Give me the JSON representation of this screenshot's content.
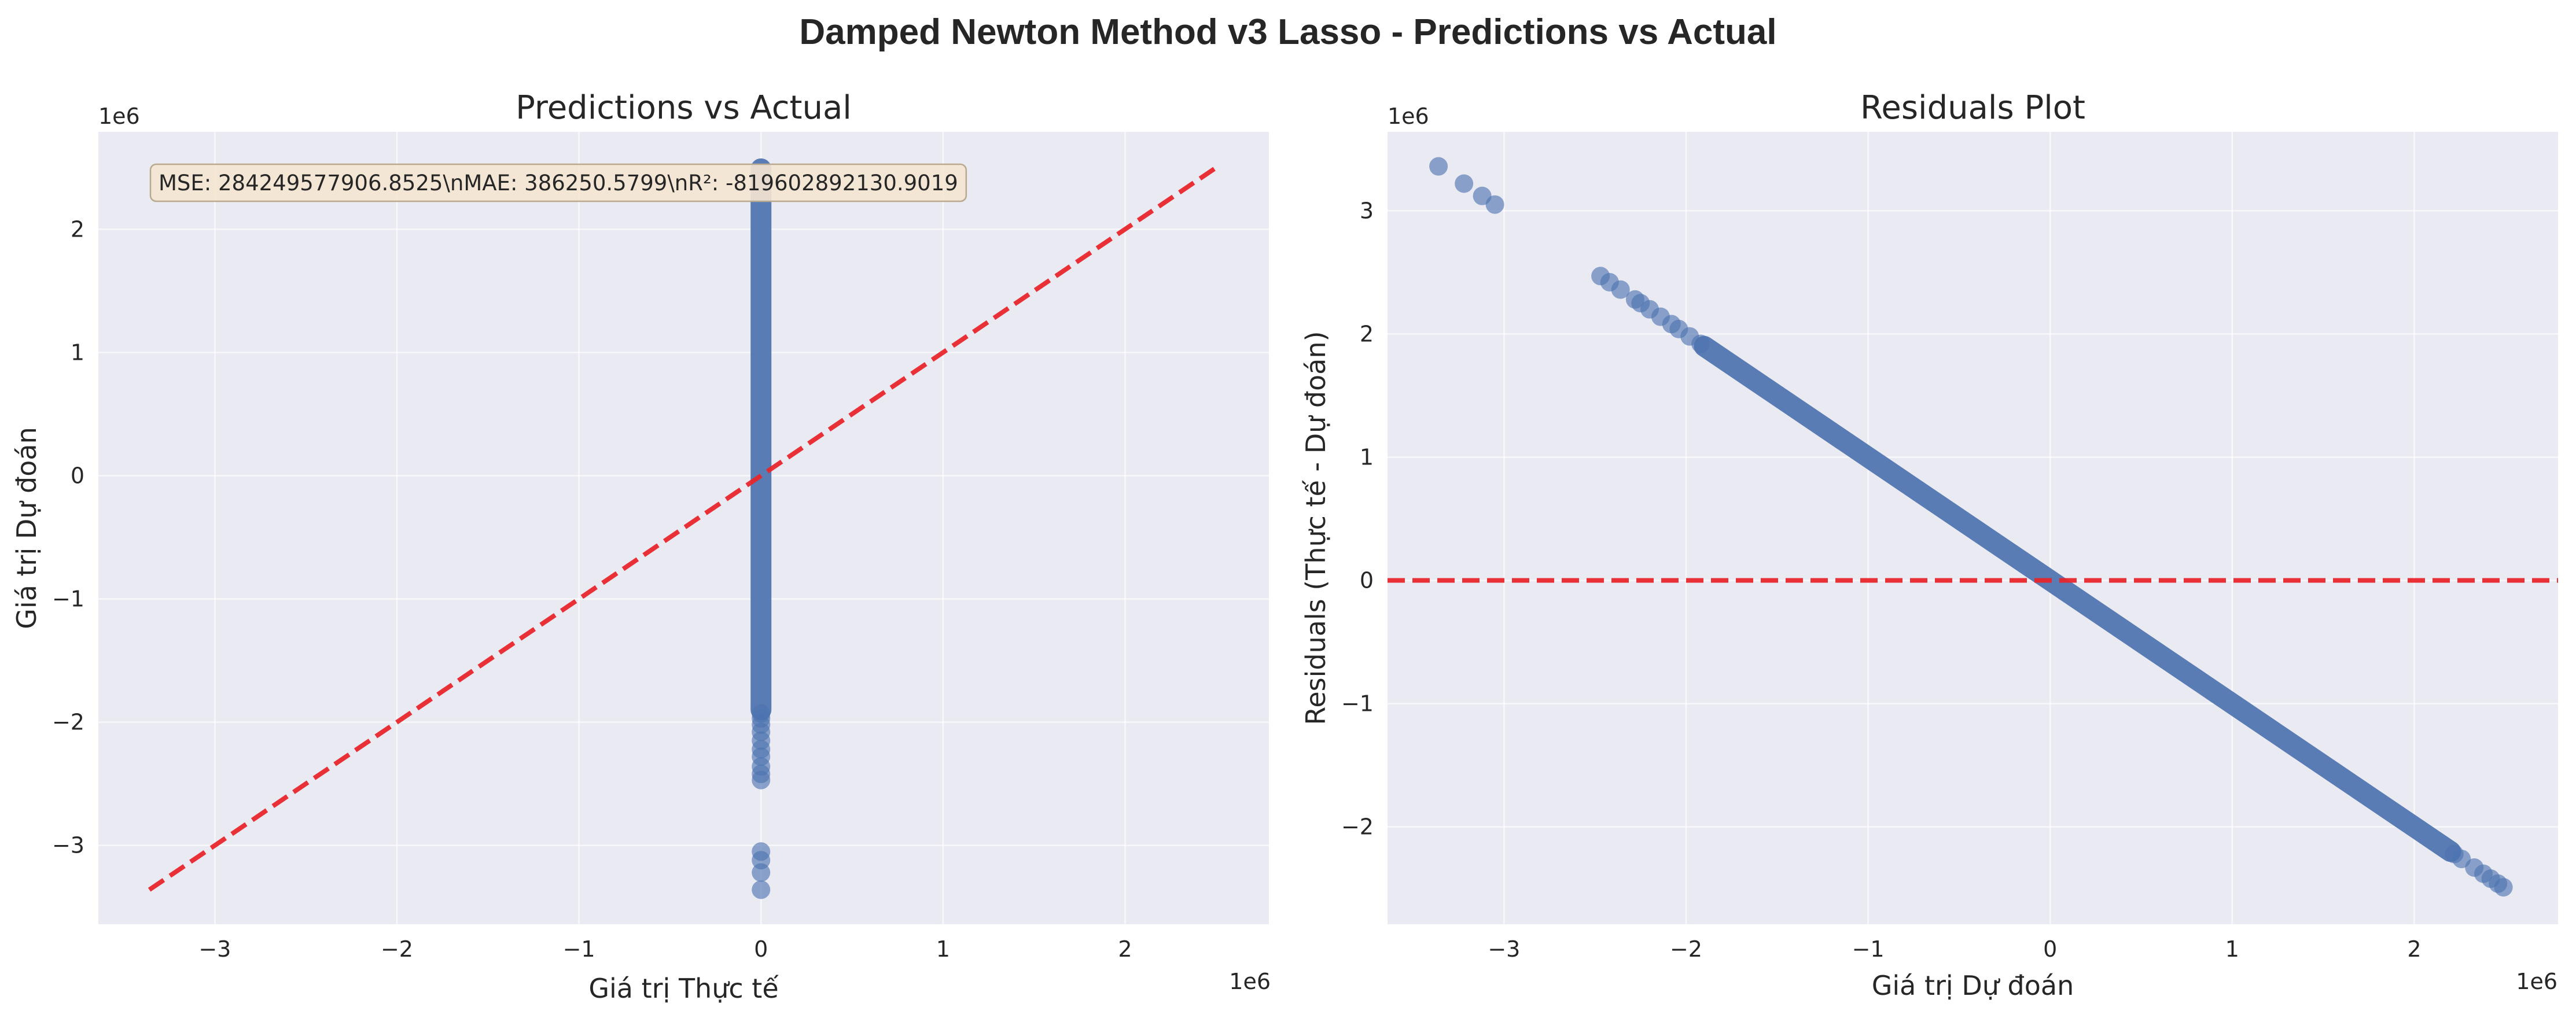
{
  "figure": {
    "title": "Damped Newton Method v3 Lasso - Predictions vs Actual"
  },
  "colors": {
    "axes_bg": "#eaeaf2",
    "grid": "#ffffff",
    "points": "#4c72b0",
    "reference_line": "#e8262b",
    "stats_box_bg": "#f5e6d0",
    "stats_box_border": "#b8a98f"
  },
  "chart_data": [
    {
      "type": "scatter",
      "title": "Predictions vs Actual",
      "xlabel": "Giá trị Thực tế",
      "ylabel": "Giá trị Dự đoán",
      "x_offset_label": "1e6",
      "y_offset_label": "1e6",
      "xlim": [
        -3.64,
        2.79
      ],
      "ylim": [
        -3.64,
        2.79
      ],
      "x_ticks": [
        -3,
        -2,
        -1,
        0,
        1,
        2
      ],
      "y_ticks": [
        -3,
        -2,
        -1,
        0,
        1,
        2
      ],
      "x_tick_labels": [
        "−3",
        "−2",
        "−1",
        "0",
        "1",
        "2"
      ],
      "y_tick_labels": [
        "−3",
        "−2",
        "−1",
        "0",
        "1",
        "2"
      ],
      "grid": true,
      "stats_text": "MSE: 284249577906.8525\\nMAE: 386250.5799\\nR²: -819602892130.9019",
      "reference_line": {
        "x": [
          -3.36,
          2.49
        ],
        "y": [
          -3.36,
          2.49
        ],
        "style": "dashed"
      },
      "points_band": {
        "x": 0,
        "y_from": -1.9,
        "y_to": 2.49
      },
      "points": [
        {
          "x": 0,
          "y": -3.36
        },
        {
          "x": 0,
          "y": -3.22
        },
        {
          "x": 0,
          "y": -3.12
        },
        {
          "x": 0,
          "y": -3.05
        },
        {
          "x": 0,
          "y": -2.47
        },
        {
          "x": 0,
          "y": -2.42
        },
        {
          "x": 0,
          "y": -2.36
        },
        {
          "x": 0,
          "y": -2.28
        },
        {
          "x": 0,
          "y": -2.22
        },
        {
          "x": 0,
          "y": -2.15
        },
        {
          "x": 0,
          "y": -2.08
        },
        {
          "x": 0,
          "y": -2.02
        },
        {
          "x": 0,
          "y": -1.97
        },
        {
          "x": 0,
          "y": -1.93
        }
      ]
    },
    {
      "type": "scatter",
      "title": "Residuals Plot",
      "xlabel": "Giá trị Dự đoán",
      "ylabel": "Residuals (Thực tế - Dự đoán)",
      "x_offset_label": "1e6",
      "y_offset_label": "1e6",
      "xlim": [
        -3.64,
        2.79
      ],
      "ylim": [
        -2.79,
        3.64
      ],
      "x_ticks": [
        -3,
        -2,
        -1,
        0,
        1,
        2
      ],
      "y_ticks": [
        -2,
        -1,
        0,
        1,
        2,
        3
      ],
      "x_tick_labels": [
        "−3",
        "−2",
        "−1",
        "0",
        "1",
        "2"
      ],
      "y_tick_labels": [
        "−2",
        "−1",
        "0",
        "1",
        "2",
        "3"
      ],
      "grid": true,
      "reference_line": {
        "y": 0,
        "style": "dashed"
      },
      "points_band": {
        "x_from": -1.9,
        "x_to": 2.2,
        "slope": -1
      },
      "points": [
        {
          "x": -3.36,
          "y": 3.36
        },
        {
          "x": -3.22,
          "y": 3.22
        },
        {
          "x": -3.12,
          "y": 3.12
        },
        {
          "x": -3.05,
          "y": 3.05
        },
        {
          "x": -2.47,
          "y": 2.47
        },
        {
          "x": -2.42,
          "y": 2.42
        },
        {
          "x": -2.36,
          "y": 2.36
        },
        {
          "x": -2.28,
          "y": 2.28
        },
        {
          "x": -2.25,
          "y": 2.25
        },
        {
          "x": -2.2,
          "y": 2.2
        },
        {
          "x": -2.14,
          "y": 2.14
        },
        {
          "x": -2.08,
          "y": 2.08
        },
        {
          "x": -2.04,
          "y": 2.04
        },
        {
          "x": -1.98,
          "y": 1.98
        },
        {
          "x": -1.92,
          "y": 1.92
        },
        {
          "x": 2.22,
          "y": -2.22
        },
        {
          "x": 2.26,
          "y": -2.26
        },
        {
          "x": 2.33,
          "y": -2.33
        },
        {
          "x": 2.38,
          "y": -2.38
        },
        {
          "x": 2.42,
          "y": -2.42
        },
        {
          "x": 2.46,
          "y": -2.46
        },
        {
          "x": 2.49,
          "y": -2.49
        }
      ]
    }
  ]
}
